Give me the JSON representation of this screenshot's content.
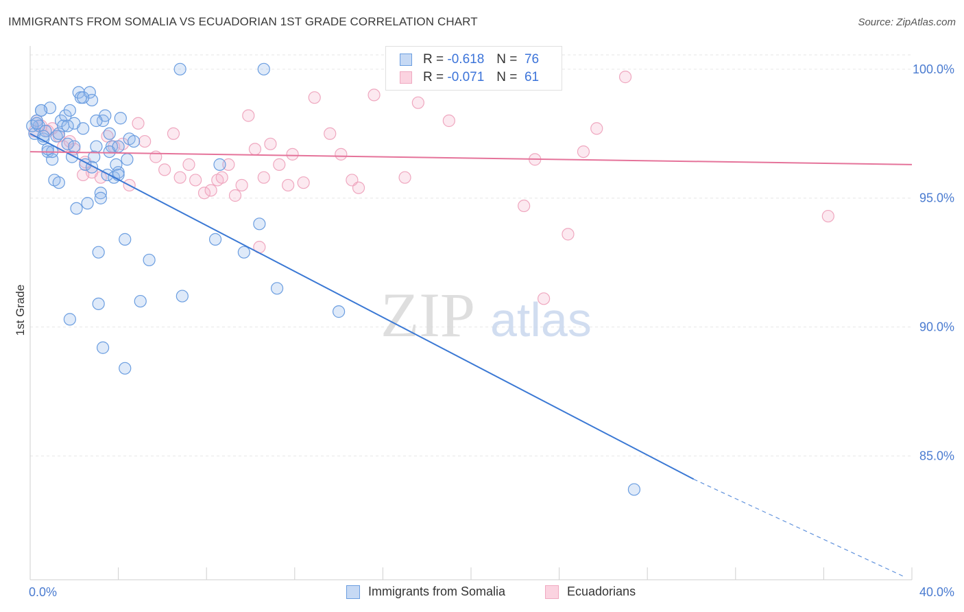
{
  "title": "IMMIGRANTS FROM SOMALIA VS ECUADORIAN 1ST GRADE CORRELATION CHART",
  "source": "Source: ZipAtlas.com",
  "colors": {
    "blue": "#6a9de0",
    "blue_line": "#3a78d4",
    "pink": "#f0a8c0",
    "pink_line": "#e5739a",
    "axis_text": "#4a7bd0"
  },
  "legend": {
    "rows": [
      {
        "r_label": "R =",
        "r_value": "-0.618",
        "n_label": "N =",
        "n_value": "76"
      },
      {
        "r_label": "R =",
        "r_value": "-0.071",
        "n_label": "N =",
        "n_value": "61"
      }
    ]
  },
  "bottom_legend": [
    "Immigrants from Somalia",
    "Ecuadorians"
  ],
  "chart_data": {
    "type": "scatter",
    "title": "IMMIGRANTS FROM SOMALIA VS ECUADORIAN 1ST GRADE CORRELATION CHART",
    "xlabel": "",
    "ylabel": "1st Grade",
    "xlim": [
      0,
      40
    ],
    "ylim": [
      80.2,
      100.9
    ],
    "x_tick_labels": [
      "0.0%",
      "40.0%"
    ],
    "y_ticks": [
      85,
      90,
      95,
      100
    ],
    "y_tick_labels": [
      "85.0%",
      "90.0%",
      "95.0%",
      "100.0%"
    ],
    "grid": true,
    "series": [
      {
        "name": "Immigrants from Somalia",
        "r": -0.618,
        "n": 76,
        "trend": {
          "x": [
            0.0,
            30.1
          ],
          "y": [
            97.5,
            84.1
          ],
          "dashed_to": [
            39.7,
            80.3
          ]
        },
        "points": [
          [
            0.2,
            97.5
          ],
          [
            0.3,
            98.0
          ],
          [
            0.4,
            97.8
          ],
          [
            0.5,
            98.4
          ],
          [
            0.6,
            97.3
          ],
          [
            0.7,
            97.6
          ],
          [
            0.8,
            96.8
          ],
          [
            0.9,
            98.5
          ],
          [
            1.0,
            96.5
          ],
          [
            1.1,
            95.7
          ],
          [
            1.2,
            97.4
          ],
          [
            1.3,
            95.6
          ],
          [
            1.4,
            98.0
          ],
          [
            1.5,
            97.8
          ],
          [
            1.6,
            98.2
          ],
          [
            1.7,
            97.1
          ],
          [
            1.8,
            98.4
          ],
          [
            1.9,
            96.6
          ],
          [
            2.0,
            97.9
          ],
          [
            2.1,
            94.6
          ],
          [
            2.2,
            99.1
          ],
          [
            2.3,
            98.9
          ],
          [
            2.4,
            97.7
          ],
          [
            2.5,
            96.3
          ],
          [
            2.6,
            94.8
          ],
          [
            2.7,
            99.1
          ],
          [
            2.8,
            98.8
          ],
          [
            2.9,
            96.6
          ],
          [
            3.0,
            97.0
          ],
          [
            3.1,
            92.9
          ],
          [
            3.2,
            95.2
          ],
          [
            3.3,
            98.0
          ],
          [
            3.4,
            98.2
          ],
          [
            3.5,
            95.9
          ],
          [
            3.6,
            97.5
          ],
          [
            3.7,
            97.0
          ],
          [
            3.8,
            95.8
          ],
          [
            3.9,
            96.3
          ],
          [
            4.0,
            96.0
          ],
          [
            4.1,
            98.1
          ],
          [
            4.3,
            93.4
          ],
          [
            4.4,
            96.5
          ],
          [
            4.5,
            97.3
          ],
          [
            4.7,
            97.2
          ],
          [
            5.0,
            91.0
          ],
          [
            5.4,
            92.6
          ],
          [
            6.9,
            91.2
          ],
          [
            8.4,
            93.4
          ],
          [
            9.7,
            92.9
          ],
          [
            10.4,
            94.0
          ],
          [
            11.2,
            91.5
          ],
          [
            14.0,
            90.6
          ],
          [
            6.8,
            100.0
          ],
          [
            10.6,
            100.0
          ],
          [
            8.6,
            96.3
          ],
          [
            0.1,
            97.8
          ],
          [
            0.3,
            97.9
          ],
          [
            0.6,
            97.4
          ],
          [
            1.0,
            96.8
          ],
          [
            1.3,
            97.5
          ],
          [
            2.0,
            97.0
          ],
          [
            2.8,
            96.2
          ],
          [
            3.2,
            95.0
          ],
          [
            3.6,
            96.8
          ],
          [
            4.0,
            95.9
          ],
          [
            0.5,
            98.4
          ],
          [
            1.7,
            97.8
          ],
          [
            2.4,
            98.9
          ],
          [
            3.0,
            98.0
          ],
          [
            0.8,
            96.9
          ],
          [
            1.8,
            90.3
          ],
          [
            3.3,
            89.2
          ],
          [
            4.3,
            88.4
          ],
          [
            3.1,
            90.9
          ],
          [
            4.0,
            97.0
          ],
          [
            27.4,
            83.7
          ]
        ]
      },
      {
        "name": "Ecuadorians",
        "r": -0.071,
        "n": 61,
        "trend": {
          "x": [
            0.0,
            40.0
          ],
          "y": [
            96.8,
            96.3
          ]
        },
        "points": [
          [
            0.3,
            98.0
          ],
          [
            0.5,
            97.8
          ],
          [
            0.8,
            97.6
          ],
          [
            1.0,
            97.7
          ],
          [
            1.3,
            97.4
          ],
          [
            1.5,
            97.0
          ],
          [
            1.8,
            97.2
          ],
          [
            2.0,
            96.9
          ],
          [
            2.5,
            96.4
          ],
          [
            2.8,
            96.0
          ],
          [
            3.2,
            95.8
          ],
          [
            3.5,
            97.4
          ],
          [
            3.8,
            97.0
          ],
          [
            4.2,
            97.1
          ],
          [
            4.5,
            95.5
          ],
          [
            4.9,
            97.9
          ],
          [
            5.2,
            97.2
          ],
          [
            5.7,
            96.6
          ],
          [
            6.1,
            96.1
          ],
          [
            6.5,
            97.5
          ],
          [
            6.8,
            95.8
          ],
          [
            7.2,
            96.3
          ],
          [
            7.5,
            95.7
          ],
          [
            7.9,
            95.2
          ],
          [
            8.2,
            95.3
          ],
          [
            8.5,
            95.7
          ],
          [
            8.7,
            95.8
          ],
          [
            9.0,
            96.3
          ],
          [
            9.3,
            95.1
          ],
          [
            9.6,
            95.5
          ],
          [
            9.9,
            98.2
          ],
          [
            10.2,
            96.9
          ],
          [
            10.6,
            95.8
          ],
          [
            10.9,
            97.1
          ],
          [
            11.3,
            96.3
          ],
          [
            11.7,
            95.5
          ],
          [
            11.9,
            96.7
          ],
          [
            12.4,
            95.6
          ],
          [
            12.9,
            98.9
          ],
          [
            13.6,
            97.5
          ],
          [
            14.1,
            96.7
          ],
          [
            14.6,
            95.7
          ],
          [
            14.9,
            95.4
          ],
          [
            15.6,
            99.0
          ],
          [
            17.0,
            95.8
          ],
          [
            17.6,
            98.7
          ],
          [
            18.5,
            100.0
          ],
          [
            19.0,
            98.0
          ],
          [
            21.0,
            100.0
          ],
          [
            22.6,
            100.0
          ],
          [
            22.4,
            94.7
          ],
          [
            22.9,
            96.5
          ],
          [
            23.3,
            91.1
          ],
          [
            24.4,
            93.6
          ],
          [
            25.1,
            96.8
          ],
          [
            25.7,
            97.7
          ],
          [
            27.0,
            99.7
          ],
          [
            36.2,
            94.3
          ],
          [
            10.4,
            93.1
          ],
          [
            2.4,
            95.9
          ],
          [
            0.2,
            97.6
          ]
        ]
      }
    ]
  }
}
